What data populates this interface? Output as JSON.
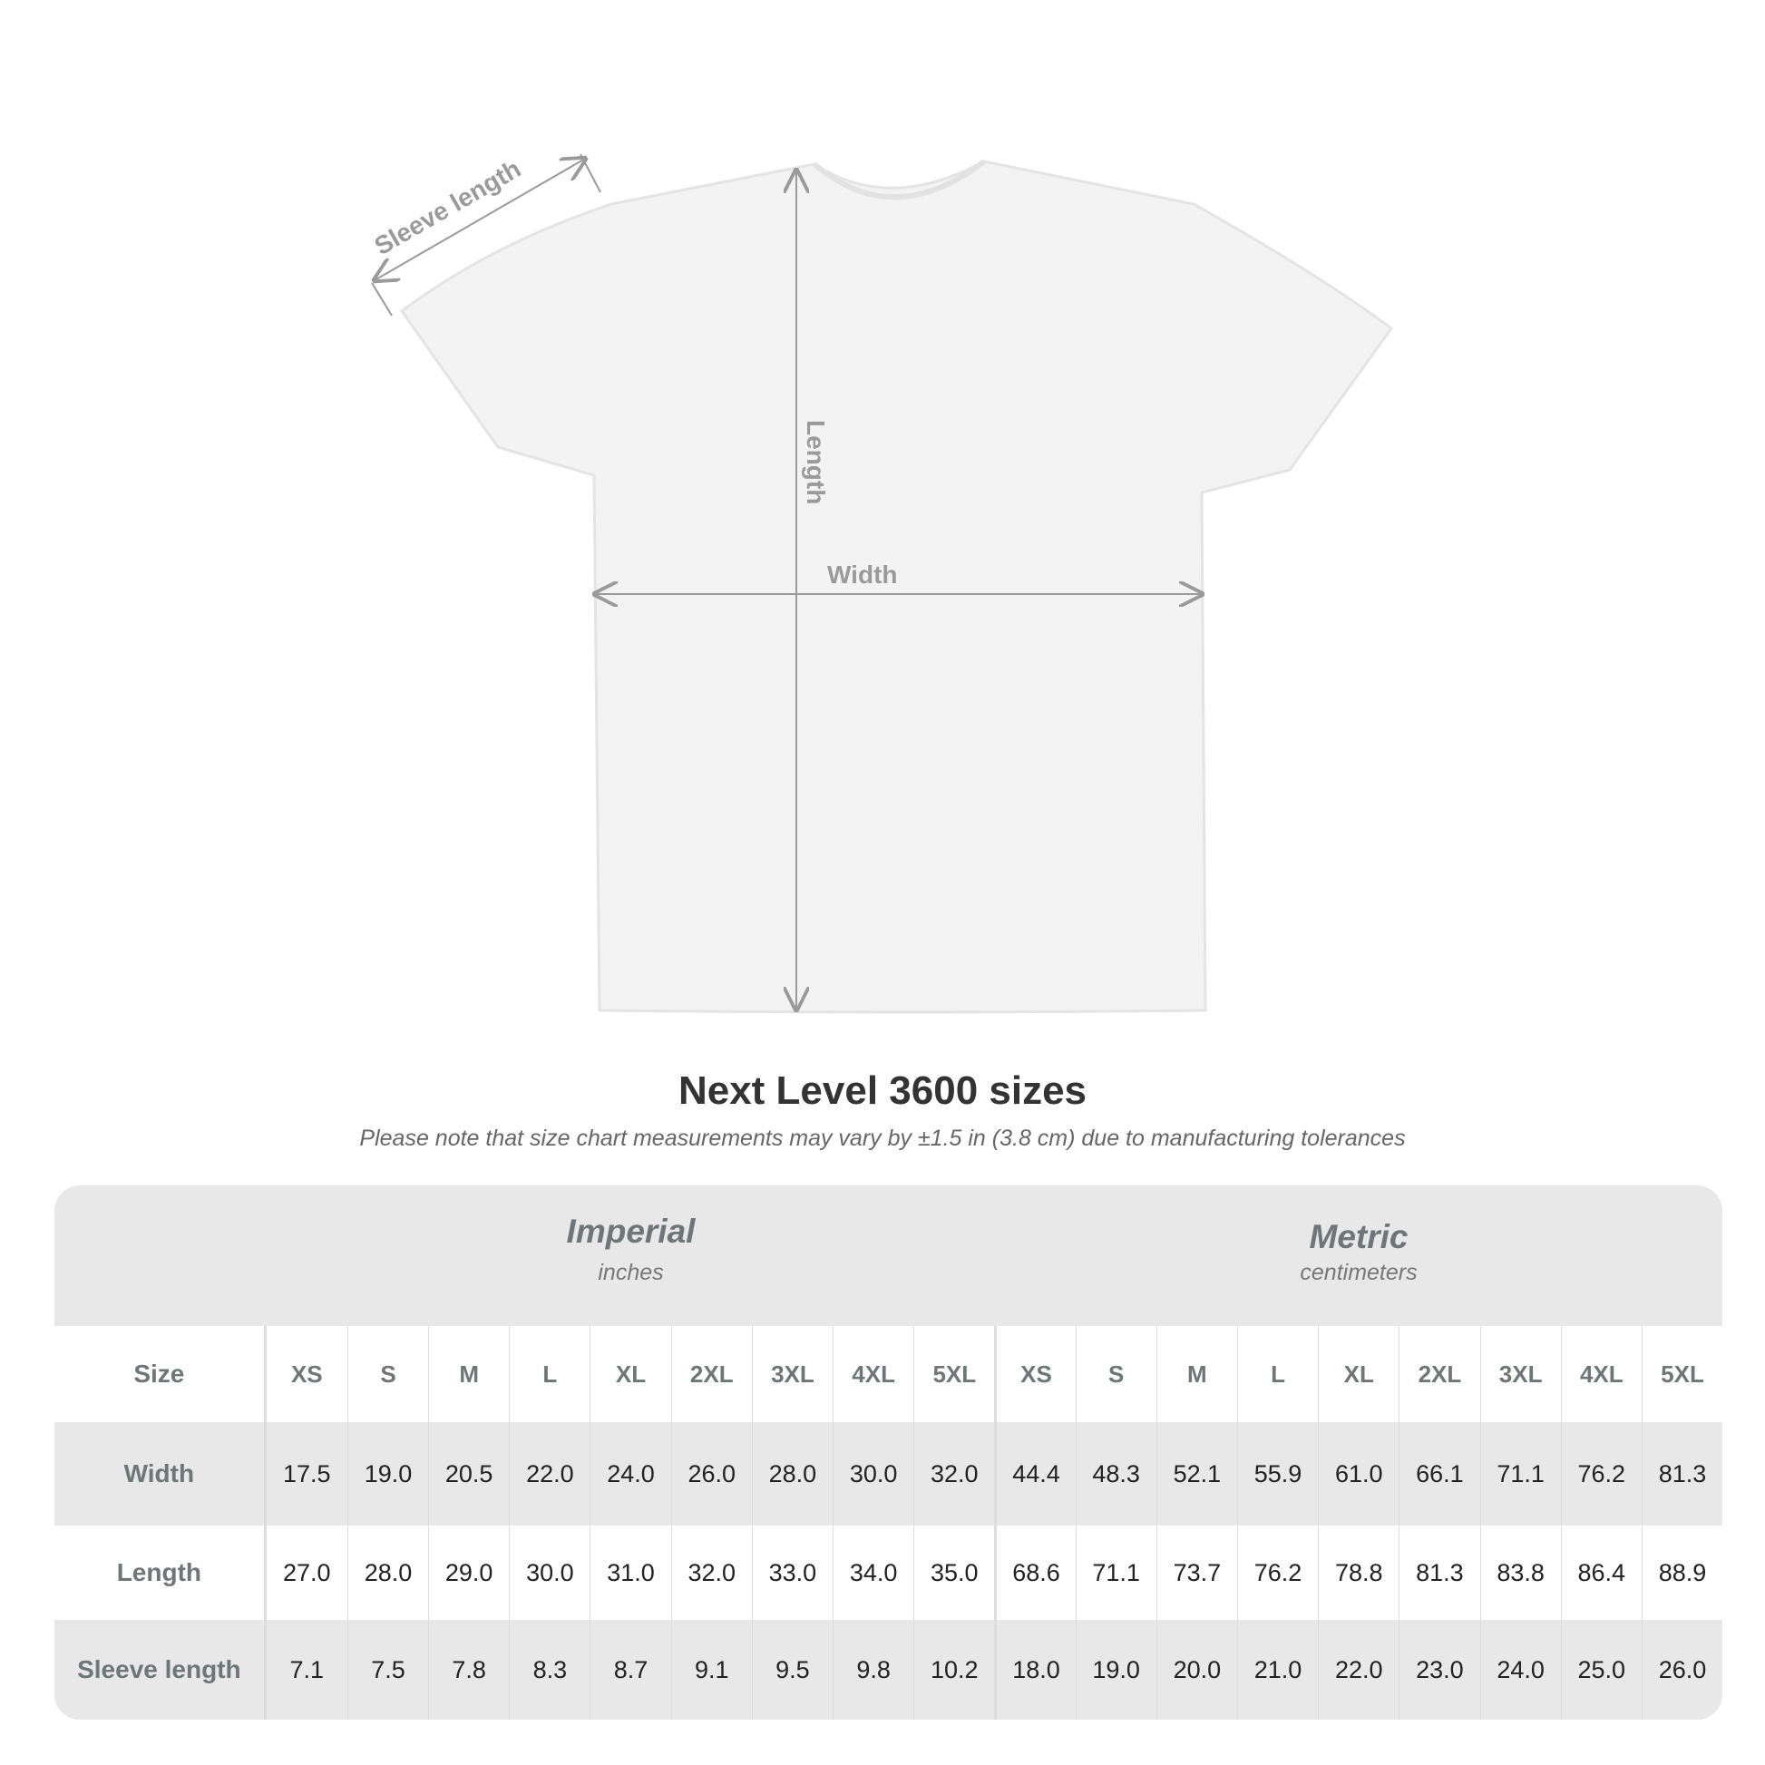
{
  "diagram": {
    "labels": {
      "sleeve": "Sleeve length",
      "length": "Length",
      "width": "Width"
    },
    "shirt_color": "#f3f3f3",
    "arrow_color": "#9a9a9a"
  },
  "title": "Next Level 3600 sizes",
  "note": "Please note that size chart measurements may vary by ±1.5 in (3.8 cm) due to manufacturing tolerances",
  "table": {
    "imperial": {
      "title": "Imperial",
      "unit": "inches"
    },
    "metric": {
      "title": "Metric",
      "unit": "centimeters"
    },
    "sizes": [
      "XS",
      "S",
      "M",
      "L",
      "XL",
      "2XL",
      "3XL",
      "4XL",
      "5XL"
    ],
    "rows": [
      {
        "label": "Size"
      },
      {
        "label": "Width",
        "imperial": [
          "17.5",
          "19.0",
          "20.5",
          "22.0",
          "24.0",
          "26.0",
          "28.0",
          "30.0",
          "32.0"
        ],
        "metric": [
          "44.4",
          "48.3",
          "52.1",
          "55.9",
          "61.0",
          "66.1",
          "71.1",
          "76.2",
          "81.3"
        ]
      },
      {
        "label": "Length",
        "imperial": [
          "27.0",
          "28.0",
          "29.0",
          "30.0",
          "31.0",
          "32.0",
          "33.0",
          "34.0",
          "35.0"
        ],
        "metric": [
          "68.6",
          "71.1",
          "73.7",
          "76.2",
          "78.8",
          "81.3",
          "83.8",
          "86.4",
          "88.9"
        ]
      },
      {
        "label": "Sleeve length",
        "imperial": [
          "7.1",
          "7.5",
          "7.8",
          "8.3",
          "8.7",
          "9.1",
          "9.5",
          "9.8",
          "10.2"
        ],
        "metric": [
          "18.0",
          "19.0",
          "20.0",
          "21.0",
          "22.0",
          "23.0",
          "24.0",
          "25.0",
          "26.0"
        ]
      }
    ]
  }
}
